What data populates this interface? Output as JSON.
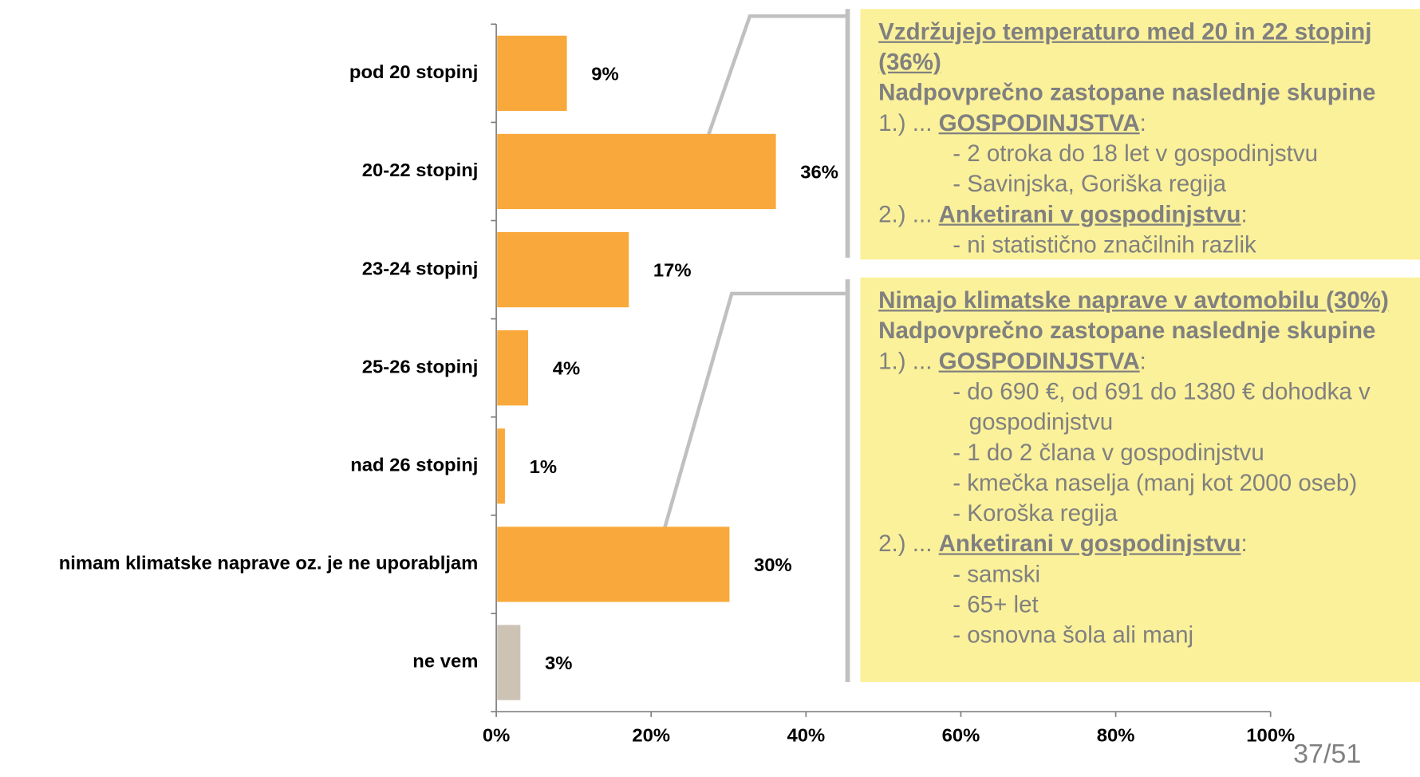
{
  "chart_data": {
    "type": "barh",
    "categories": [
      "pod 20 stopinj",
      "20-22 stopinj",
      "23-24 stopinj",
      "25-26 stopinj",
      "nad 26 stopinj",
      "nimam klimatske naprave oz. je ne uporabljam",
      "ne vem"
    ],
    "values": [
      9,
      36,
      17,
      4,
      1,
      30,
      3
    ],
    "value_labels": [
      "9%",
      "36%",
      "17%",
      "4%",
      "1%",
      "30%",
      "3%"
    ],
    "colors": [
      "#f9a93b",
      "#f9a93b",
      "#f9a93b",
      "#f9a93b",
      "#f9a93b",
      "#f9a93b",
      "#cdc3b5"
    ],
    "xlim": [
      0,
      100
    ],
    "xticks": [
      {
        "value": 0,
        "label": "0%"
      },
      {
        "value": 20,
        "label": "20%"
      },
      {
        "value": 40,
        "label": "40%"
      },
      {
        "value": 60,
        "label": "60%"
      },
      {
        "value": 80,
        "label": "80%"
      },
      {
        "value": 100,
        "label": "100%"
      }
    ],
    "grid": false
  },
  "callouts": [
    {
      "title": "Vzdržujejo temperaturo med 20 in 22 stopinj (36%)",
      "subtitle": "Nadpovprečno zastopane naslednje skupine",
      "groups": [
        {
          "prefix": "1.) ...",
          "heading": "GOSPODINJSTVA",
          "suffix": ":",
          "lines": [
            "- 2 otroka do 18 let v gospodinjstvu",
            "- Savinjska, Goriška regija"
          ]
        },
        {
          "prefix": "2.) ...",
          "heading": "Anketirani v gospodinjstvu",
          "suffix": ":",
          "lines": [
            "- ni statistično značilnih razlik"
          ]
        }
      ]
    },
    {
      "title": "Nimajo klimatske naprave v avtomobilu (30%)",
      "subtitle": "Nadpovprečno zastopane naslednje skupine",
      "groups": [
        {
          "prefix": "1.) ...",
          "heading": "GOSPODINJSTVA",
          "suffix": ":",
          "lines": [
            "- do 690 €, od 691 do 1380 € dohodka v gospodinjstvu",
            "- 1 do 2 člana v gospodinjstvu",
            "- kmečka naselja (manj kot 2000 oseb)",
            "- Koroška regija"
          ]
        },
        {
          "prefix": "2.) ...",
          "heading": "Anketirani v gospodinjstvu",
          "suffix": ":",
          "lines": [
            "- samski",
            "- 65+ let",
            "- osnovna šola ali manj"
          ]
        }
      ]
    }
  ],
  "page_number": "37/51"
}
